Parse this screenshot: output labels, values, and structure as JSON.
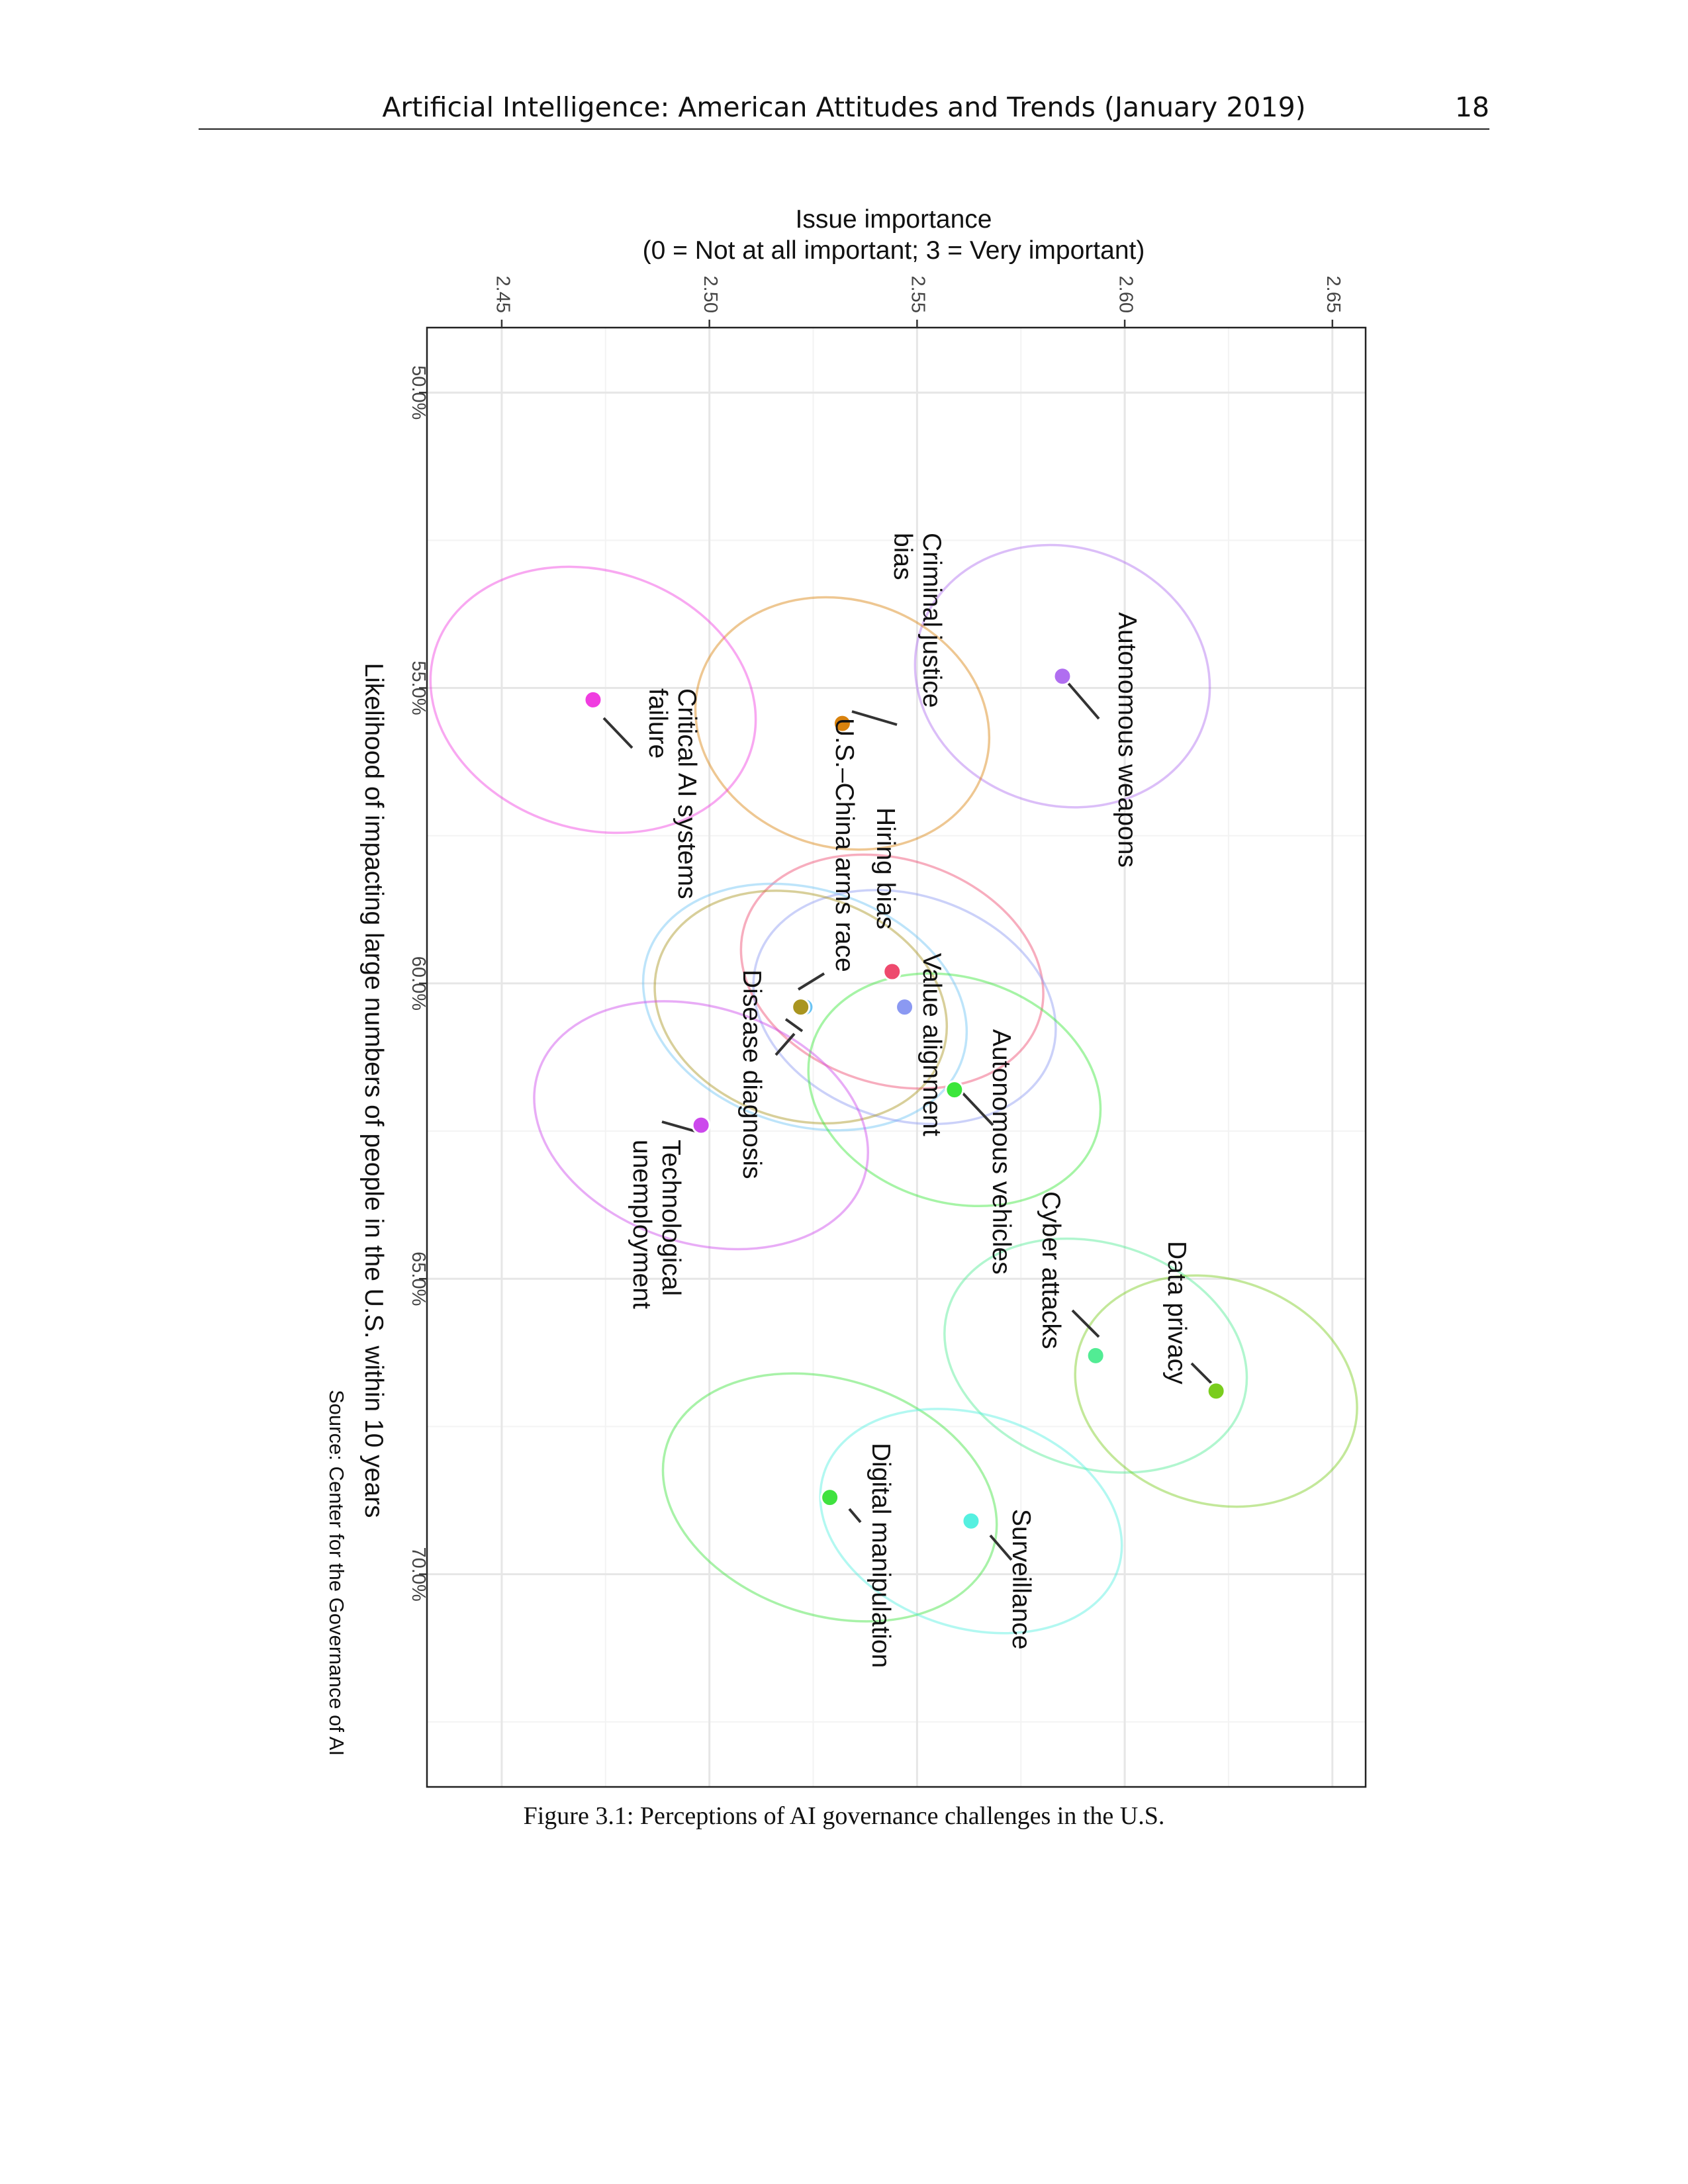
{
  "header": {
    "title": "Artificial Intelligence: American Attitudes and Trends (January 2019)",
    "page_number": "18"
  },
  "caption": "Figure 3.1: Perceptions of AI governance challenges in the U.S.",
  "chart_data": {
    "type": "scatter",
    "orientation": "rotated-90-clockwise",
    "title": "",
    "xlabel": "Likelihood of impacting large numbers of people in the U.S. within 10 years",
    "ylabel": "Issue importance\n(0 = Not at all important; 3 = Very important)",
    "ylabel_lines": [
      "Issue importance",
      "(0 = Not at all important; 3 = Very important)"
    ],
    "source": "Source: Center for the Governance of AI",
    "xlim": [
      48.9,
      73.6
    ],
    "ylim": [
      2.432,
      2.658
    ],
    "x_ticks": [
      50,
      55,
      60,
      65,
      70
    ],
    "x_tick_labels": [
      "50.0%",
      "55.0%",
      "60.0%",
      "65.0%",
      "70.0%"
    ],
    "y_ticks": [
      2.45,
      2.5,
      2.55,
      2.6,
      2.65
    ],
    "y_tick_labels": [
      "2.45",
      "2.50",
      "2.55",
      "2.60",
      "2.65"
    ],
    "grid": true,
    "points": [
      {
        "label": "Autonomous weapons",
        "label_lines": [
          "Autonomous weapons"
        ],
        "x": 54.8,
        "y": 2.585,
        "x_err": 2.3,
        "y_err": 0.027,
        "color": "#b06ef0"
      },
      {
        "label": "Criminal justice bias",
        "label_lines": [
          "Criminal justice",
          "bias"
        ],
        "x": 55.6,
        "y": 2.532,
        "x_err": 2.2,
        "y_err": 0.027,
        "color": "#d9820d"
      },
      {
        "label": "Critical AI systems failure",
        "label_lines": [
          "Critical AI systems",
          "failure"
        ],
        "x": 55.2,
        "y": 2.472,
        "x_err": 2.3,
        "y_err": 0.03,
        "color": "#f03de0"
      },
      {
        "label": "Hiring bias",
        "label_lines": [
          "Hiring bias"
        ],
        "x": 59.8,
        "y": 2.544,
        "x_err": 2.0,
        "y_err": 0.028,
        "color": "#ee4a6e"
      },
      {
        "label": "U.S.–China arms race",
        "label_lines": [
          "U.S.–China arms race"
        ],
        "x": 60.4,
        "y": 2.523,
        "x_err": 2.1,
        "y_err": 0.03,
        "color": "#6cc4f4"
      },
      {
        "label": "Value alignment",
        "label_lines": [
          "Value alignment"
        ],
        "x": 60.4,
        "y": 2.547,
        "x_err": 2.0,
        "y_err": 0.028,
        "color": "#8b99f2"
      },
      {
        "label": "Disease diagnosis",
        "label_lines": [
          "Disease diagnosis"
        ],
        "x": 60.4,
        "y": 2.522,
        "x_err": 2.0,
        "y_err": 0.027,
        "color": "#a99520"
      },
      {
        "label": "Autonomous vehicles",
        "label_lines": [
          "Autonomous vehicles"
        ],
        "x": 61.8,
        "y": 2.559,
        "x_err": 2.0,
        "y_err": 0.027,
        "color": "#3ae63a"
      },
      {
        "label": "Technological unemployment",
        "label_lines": [
          "Technological",
          "unemployment"
        ],
        "x": 62.4,
        "y": 2.498,
        "x_err": 2.1,
        "y_err": 0.031,
        "color": "#cc48ec"
      },
      {
        "label": "Cyber attacks",
        "label_lines": [
          "Cyber attacks"
        ],
        "x": 66.3,
        "y": 2.593,
        "x_err": 2.0,
        "y_err": 0.028,
        "color": "#52ec94"
      },
      {
        "label": "Data privacy",
        "label_lines": [
          "Data privacy"
        ],
        "x": 66.9,
        "y": 2.622,
        "x_err": 2.0,
        "y_err": 0.026,
        "color": "#7acd1e"
      },
      {
        "label": "Digital manipulation",
        "label_lines": [
          "Digital manipulation"
        ],
        "x": 68.7,
        "y": 2.529,
        "x_err": 2.1,
        "y_err": 0.031,
        "color": "#3fe23f"
      },
      {
        "label": "Surveillance",
        "label_lines": [
          "Surveillance"
        ],
        "x": 69.1,
        "y": 2.563,
        "x_err": 1.9,
        "y_err": 0.028,
        "color": "#55f0e0"
      }
    ]
  }
}
